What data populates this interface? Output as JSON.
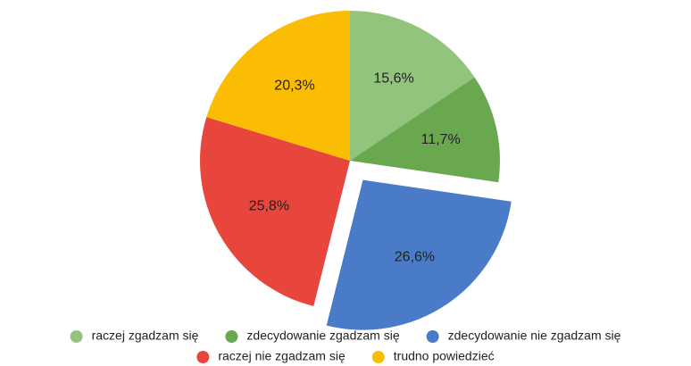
{
  "chart_data": {
    "type": "pie",
    "categories": [
      "raczej zgadzam się",
      "zdecydowanie zgadzam się",
      "zdecydowanie nie zgadzam się",
      "raczej nie zgadzam się",
      "trudno powiedzieć"
    ],
    "values": [
      15.6,
      11.7,
      26.6,
      25.8,
      20.3
    ],
    "value_labels": [
      "15,6%",
      "11,7%",
      "26,6%",
      "25,8%",
      "20,3%"
    ],
    "colors": [
      "#93c47d",
      "#6aa84f",
      "#4a7bc8",
      "#e8453c",
      "#fbbc04"
    ],
    "exploded": [
      false,
      false,
      true,
      false,
      false
    ],
    "legend": "bottom"
  }
}
